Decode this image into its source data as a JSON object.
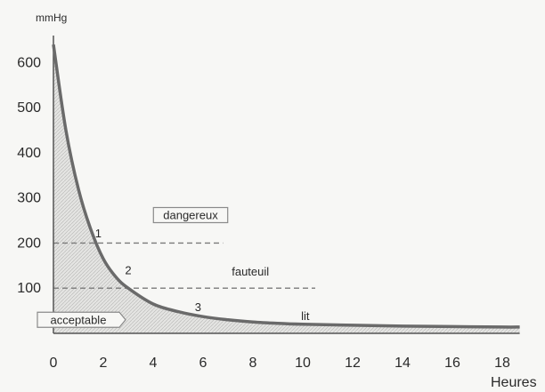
{
  "chart_data": {
    "type": "area",
    "ylabel": "mmHg",
    "xlabel": "Heures",
    "xlim": [
      0,
      19
    ],
    "ylim": [
      0,
      650
    ],
    "x_ticks": [
      0,
      2,
      4,
      6,
      8,
      10,
      12,
      14,
      16,
      18
    ],
    "y_ticks": [
      100,
      200,
      300,
      400,
      500,
      600
    ],
    "grid": false,
    "series": [
      {
        "x": [
          0,
          0.5,
          1,
          1.5,
          2,
          2.5,
          3,
          4,
          5,
          6,
          7,
          8,
          9,
          10,
          12,
          14,
          16,
          18,
          18.7
        ],
        "values": [
          640,
          450,
          320,
          230,
          165,
          125,
          100,
          65,
          48,
          37,
          30,
          25,
          22,
          20,
          18,
          16,
          15,
          14,
          14
        ]
      }
    ],
    "thresholds": [
      {
        "y": 200,
        "x_end": 6.8
      },
      {
        "y": 100,
        "x_end": 10.5
      }
    ],
    "annotations": [
      {
        "id": "dangereux",
        "text": "dangereux",
        "x": 5.5,
        "y": 262,
        "boxed": true
      },
      {
        "id": "fauteuil",
        "text": "fauteuil",
        "x": 7.9,
        "y": 137,
        "boxed": false
      },
      {
        "id": "lit",
        "text": "lit",
        "x": 10.1,
        "y": 38,
        "boxed": false
      },
      {
        "id": "acceptable",
        "text": "acceptable",
        "x": 1.0,
        "y": 30,
        "boxed": true
      }
    ],
    "point_labels": [
      {
        "text": "1",
        "x": 1.8,
        "y": 222
      },
      {
        "text": "2",
        "x": 3.0,
        "y": 140
      },
      {
        "text": "3",
        "x": 5.8,
        "y": 58
      }
    ]
  }
}
